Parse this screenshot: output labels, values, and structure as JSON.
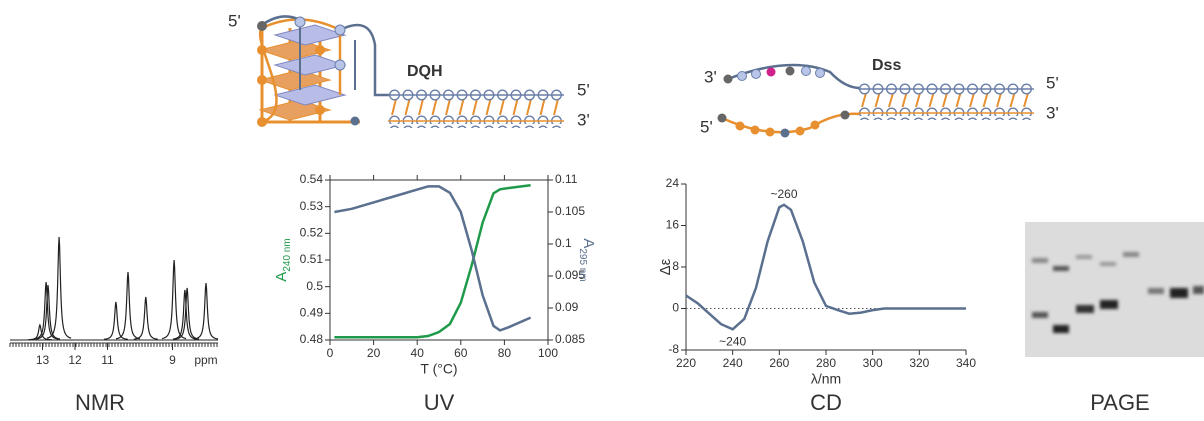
{
  "chart_data": [
    {
      "type": "spectrum",
      "x": [
        13.08,
        12.89,
        12.83,
        12.49,
        10.74,
        10.37,
        9.82,
        8.95,
        8.62,
        8.55,
        7.97
      ],
      "values": [
        15,
        58,
        55,
        103,
        38,
        68,
        43,
        80,
        50,
        52,
        57
      ],
      "xlim": [
        14.0,
        7.6
      ],
      "ylim": [
        0,
        110
      ],
      "xticks": [
        13,
        12,
        11,
        9
      ],
      "x_unit": "ppm",
      "color": "#222222"
    },
    {
      "type": "line",
      "x_label": "T (°C)",
      "y_label": "A",
      "y_label_sub": "240 nm",
      "y2_label": "A",
      "y2_label_sub": "295 nm",
      "x": [
        2,
        10,
        20,
        30,
        40,
        45,
        50,
        55,
        60,
        65,
        70,
        75,
        78,
        82,
        92
      ],
      "xlim": [
        0,
        100
      ],
      "xticks": [
        0,
        20,
        40,
        60,
        80,
        100
      ],
      "ylim": [
        0.48,
        0.54
      ],
      "yticks": [
        0.48,
        0.49,
        0.5,
        0.51,
        0.52,
        0.53,
        0.54
      ],
      "y2lim": [
        0.085,
        0.11
      ],
      "y2ticks": [
        0.085,
        0.09,
        0.095,
        0.1,
        0.105,
        0.11
      ],
      "series": [
        {
          "color": "#1f9a4a",
          "values": [
            0.481,
            0.481,
            0.481,
            0.481,
            0.481,
            0.4815,
            0.483,
            0.486,
            0.494,
            0.508,
            0.524,
            0.535,
            0.5365,
            0.537,
            0.538
          ]
        },
        {
          "color": "#5b6f8f",
          "axis": "y2",
          "values": [
            0.105,
            0.1055,
            0.1065,
            0.1075,
            0.1085,
            0.109,
            0.109,
            0.108,
            0.105,
            0.099,
            0.092,
            0.0872,
            0.0865,
            0.087,
            0.0885
          ]
        }
      ]
    },
    {
      "type": "line",
      "x_label": "λ/nm",
      "y_label": "Δε",
      "x": [
        220,
        225,
        230,
        235,
        240,
        245,
        250,
        255,
        260,
        262,
        265,
        270,
        275,
        280,
        285,
        290,
        295,
        300,
        305,
        310,
        320,
        330,
        340
      ],
      "xlim": [
        220,
        340
      ],
      "xticks": [
        220,
        240,
        260,
        280,
        300,
        320,
        340
      ],
      "ylim": [
        -8,
        24
      ],
      "yticks": [
        -8,
        0,
        8,
        16,
        24
      ],
      "zero_line": true,
      "annotations": [
        "~260",
        "~240"
      ],
      "series": [
        {
          "color": "#5b6f8f",
          "values": [
            2.5,
            1,
            -1,
            -3,
            -4,
            -2,
            4,
            13,
            19.5,
            20,
            19,
            13,
            5,
            0.5,
            -0.3,
            -1,
            -0.8,
            -0.3,
            0,
            0,
            0,
            0,
            0
          ]
        }
      ]
    }
  ],
  "diagrams": {
    "dqh": {
      "label": "DQH",
      "ends": [
        "5'",
        "5'",
        "3'"
      ]
    },
    "dss": {
      "label": "Dss",
      "ends": [
        "3'",
        "5'",
        "5'",
        "3'"
      ]
    }
  },
  "panels": [
    "NMR",
    "UV",
    "CD",
    "PAGE"
  ]
}
